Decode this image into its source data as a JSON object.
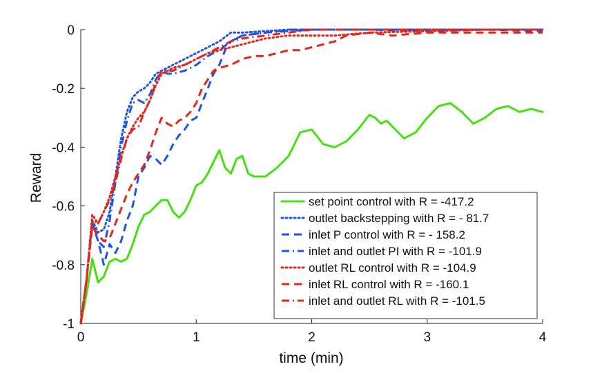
{
  "chart_data": {
    "type": "line",
    "title": "",
    "xlabel": "time (min)",
    "ylabel": "Reward",
    "xlim": [
      0,
      4
    ],
    "ylim": [
      -1,
      0
    ],
    "xticks": [
      0,
      1,
      2,
      3,
      4
    ],
    "xtick_labels": [
      "0",
      "1",
      "2",
      "3",
      "4"
    ],
    "yticks": [
      -1,
      -0.8,
      -0.6,
      -0.4,
      -0.2,
      0
    ],
    "ytick_labels": [
      "-1",
      "-0.8",
      "-0.6",
      "-0.4",
      "-0.2",
      "0"
    ],
    "grid": false,
    "legend_position": "bottom-right",
    "series": [
      {
        "name": "set point control with R = -417.2",
        "color": "#44e010",
        "dash": "solid",
        "x": [
          0,
          0.05,
          0.1,
          0.15,
          0.2,
          0.25,
          0.3,
          0.35,
          0.4,
          0.45,
          0.5,
          0.55,
          0.6,
          0.65,
          0.7,
          0.75,
          0.8,
          0.85,
          0.9,
          0.95,
          1.0,
          1.05,
          1.1,
          1.15,
          1.2,
          1.25,
          1.3,
          1.35,
          1.4,
          1.45,
          1.5,
          1.6,
          1.7,
          1.8,
          1.9,
          2.0,
          2.1,
          2.2,
          2.3,
          2.4,
          2.5,
          2.55,
          2.6,
          2.65,
          2.7,
          2.8,
          2.9,
          3.0,
          3.1,
          3.2,
          3.3,
          3.4,
          3.5,
          3.6,
          3.7,
          3.8,
          3.9,
          4.0
        ],
        "y": [
          -1.0,
          -0.9,
          -0.78,
          -0.86,
          -0.84,
          -0.79,
          -0.78,
          -0.79,
          -0.78,
          -0.73,
          -0.67,
          -0.63,
          -0.62,
          -0.6,
          -0.58,
          -0.58,
          -0.62,
          -0.64,
          -0.62,
          -0.58,
          -0.53,
          -0.52,
          -0.49,
          -0.45,
          -0.41,
          -0.47,
          -0.49,
          -0.44,
          -0.43,
          -0.49,
          -0.5,
          -0.5,
          -0.47,
          -0.43,
          -0.35,
          -0.34,
          -0.39,
          -0.4,
          -0.38,
          -0.34,
          -0.29,
          -0.3,
          -0.32,
          -0.31,
          -0.33,
          -0.37,
          -0.35,
          -0.3,
          -0.26,
          -0.25,
          -0.28,
          -0.32,
          -0.3,
          -0.27,
          -0.26,
          -0.28,
          -0.27,
          -0.28
        ]
      },
      {
        "name": "outlet backstepping with R = - 81.7",
        "color": "#1a55e6",
        "dash": "dotted",
        "x": [
          0,
          0.05,
          0.1,
          0.15,
          0.2,
          0.25,
          0.3,
          0.35,
          0.4,
          0.45,
          0.5,
          0.55,
          0.6,
          0.65,
          0.7,
          0.8,
          0.9,
          1.0,
          1.1,
          1.2,
          1.3,
          1.4,
          1.6,
          1.8,
          2.0,
          2.5,
          3.0,
          3.5,
          4.0
        ],
        "y": [
          -1.0,
          -0.85,
          -0.65,
          -0.69,
          -0.68,
          -0.62,
          -0.5,
          -0.37,
          -0.28,
          -0.23,
          -0.21,
          -0.2,
          -0.18,
          -0.15,
          -0.14,
          -0.12,
          -0.1,
          -0.08,
          -0.06,
          -0.04,
          -0.01,
          -0.01,
          -0.005,
          0.0,
          0.0,
          0.0,
          0.0,
          0.0,
          0.0
        ]
      },
      {
        "name": "inlet P control with R = - 158.2",
        "color": "#1a55e6",
        "dash": "dashed",
        "x": [
          0,
          0.05,
          0.1,
          0.15,
          0.2,
          0.25,
          0.3,
          0.35,
          0.4,
          0.45,
          0.5,
          0.55,
          0.6,
          0.65,
          0.7,
          0.75,
          0.8,
          0.85,
          0.9,
          0.95,
          1.0,
          1.05,
          1.1,
          1.15,
          1.2,
          1.25,
          1.3,
          1.35,
          1.4,
          1.6,
          1.8,
          2.0,
          2.5,
          3.0,
          3.5,
          4.0
        ],
        "y": [
          -1.0,
          -0.85,
          -0.66,
          -0.72,
          -0.8,
          -0.73,
          -0.76,
          -0.72,
          -0.65,
          -0.6,
          -0.5,
          -0.47,
          -0.43,
          -0.44,
          -0.46,
          -0.43,
          -0.39,
          -0.36,
          -0.34,
          -0.31,
          -0.3,
          -0.25,
          -0.2,
          -0.15,
          -0.12,
          -0.07,
          -0.04,
          -0.03,
          -0.02,
          -0.01,
          0.0,
          0.0,
          0.0,
          -0.005,
          0.0,
          -0.005
        ]
      },
      {
        "name": "inlet and outlet PI with R = -101.9",
        "color": "#1a55e6",
        "dash": "dashdot",
        "x": [
          0,
          0.05,
          0.1,
          0.15,
          0.2,
          0.25,
          0.3,
          0.35,
          0.4,
          0.45,
          0.5,
          0.55,
          0.6,
          0.65,
          0.7,
          0.75,
          0.8,
          0.9,
          1.0,
          1.1,
          1.2,
          1.3,
          1.4,
          1.6,
          1.8,
          2.0,
          2.5,
          3.0,
          3.5,
          4.0
        ],
        "y": [
          -1.0,
          -0.85,
          -0.65,
          -0.72,
          -0.74,
          -0.65,
          -0.52,
          -0.4,
          -0.31,
          -0.25,
          -0.24,
          -0.25,
          -0.22,
          -0.17,
          -0.14,
          -0.15,
          -0.15,
          -0.14,
          -0.12,
          -0.09,
          -0.07,
          -0.04,
          -0.02,
          -0.01,
          -0.005,
          0.0,
          0.0,
          0.0,
          0.0,
          0.0
        ]
      },
      {
        "name": "outlet RL control with R = -104.9",
        "color": "#e5241a",
        "dash": "dotted",
        "x": [
          0,
          0.05,
          0.1,
          0.15,
          0.2,
          0.25,
          0.3,
          0.35,
          0.4,
          0.45,
          0.5,
          0.55,
          0.6,
          0.65,
          0.7,
          0.8,
          0.9,
          1.0,
          1.1,
          1.2,
          1.3,
          1.4,
          1.6,
          1.8,
          2.0,
          2.2,
          2.5,
          3.0,
          3.5,
          4.0
        ],
        "y": [
          -1.0,
          -0.85,
          -0.63,
          -0.66,
          -0.62,
          -0.57,
          -0.5,
          -0.43,
          -0.37,
          -0.33,
          -0.3,
          -0.28,
          -0.24,
          -0.19,
          -0.15,
          -0.13,
          -0.12,
          -0.1,
          -0.08,
          -0.07,
          -0.06,
          -0.05,
          -0.03,
          -0.02,
          -0.02,
          -0.02,
          -0.01,
          -0.005,
          0.0,
          0.0
        ]
      },
      {
        "name": "inlet RL control with R = -160.1",
        "color": "#e5241a",
        "dash": "dashed",
        "x": [
          0,
          0.05,
          0.1,
          0.15,
          0.2,
          0.25,
          0.3,
          0.35,
          0.4,
          0.45,
          0.5,
          0.55,
          0.6,
          0.65,
          0.7,
          0.75,
          0.8,
          0.85,
          0.9,
          0.95,
          1.0,
          1.05,
          1.1,
          1.15,
          1.2,
          1.3,
          1.4,
          1.5,
          1.6,
          1.7,
          1.8,
          1.9,
          2.0,
          2.1,
          2.2,
          2.3,
          2.5,
          2.7,
          3.0,
          3.5,
          4.0
        ],
        "y": [
          -1.0,
          -0.85,
          -0.67,
          -0.7,
          -0.72,
          -0.71,
          -0.66,
          -0.61,
          -0.56,
          -0.52,
          -0.49,
          -0.46,
          -0.41,
          -0.35,
          -0.3,
          -0.32,
          -0.33,
          -0.31,
          -0.3,
          -0.28,
          -0.25,
          -0.2,
          -0.17,
          -0.14,
          -0.13,
          -0.12,
          -0.1,
          -0.09,
          -0.09,
          -0.08,
          -0.07,
          -0.07,
          -0.06,
          -0.05,
          -0.04,
          -0.02,
          -0.01,
          -0.02,
          -0.01,
          -0.01,
          -0.01
        ]
      },
      {
        "name": "inlet and outlet RL with R = -101.5",
        "color": "#e5241a",
        "dash": "dashdot",
        "x": [
          0,
          0.05,
          0.1,
          0.15,
          0.2,
          0.25,
          0.3,
          0.35,
          0.4,
          0.45,
          0.5,
          0.55,
          0.6,
          0.65,
          0.7,
          0.8,
          0.9,
          1.0,
          1.1,
          1.2,
          1.3,
          1.4,
          1.6,
          1.8,
          2.0,
          2.5,
          3.0,
          3.5,
          4.0
        ],
        "y": [
          -1.0,
          -0.85,
          -0.65,
          -0.66,
          -0.62,
          -0.58,
          -0.52,
          -0.44,
          -0.37,
          -0.34,
          -0.33,
          -0.28,
          -0.24,
          -0.18,
          -0.14,
          -0.14,
          -0.12,
          -0.1,
          -0.08,
          -0.06,
          -0.04,
          -0.03,
          -0.02,
          -0.01,
          0.0,
          0.0,
          0.0,
          0.0,
          0.0
        ]
      }
    ]
  }
}
